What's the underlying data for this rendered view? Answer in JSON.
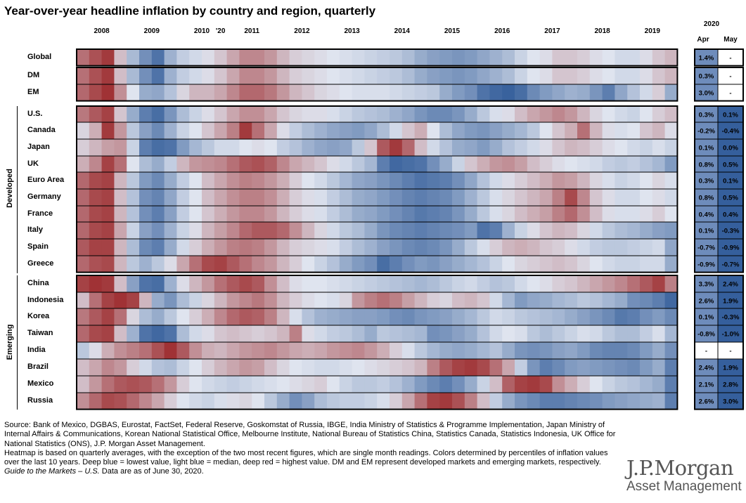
{
  "title": "Year-over-year headline inflation by country and region, quarterly",
  "header": {
    "years": [
      "2008",
      "2009",
      "2010",
      "2011",
      "2012",
      "2013",
      "2014",
      "2015",
      "2016",
      "2017",
      "2018",
      "2019",
      "'20"
    ],
    "recent_year": "2020",
    "recent_months": [
      "Apr",
      "May"
    ]
  },
  "groups": {
    "developed": "Developed",
    "emerging": "Emerging"
  },
  "colors": {
    "deep_blue": "#2b5796",
    "light_blue": "#dfe4ef",
    "deep_red": "#9a2325"
  },
  "chart_data": {
    "type": "heatmap",
    "title": "Year-over-year headline inflation by country and region, quarterly",
    "x_label_years": [
      "2008",
      "2009",
      "2010",
      "2011",
      "2012",
      "2013",
      "2014",
      "2015",
      "2016",
      "2017",
      "2018",
      "2019",
      "'20"
    ],
    "quarters_per_year": 4,
    "scale": "percentile rank of inflation over the last 10 years (0 = lowest / deep blue, 50 = median / light blue, 100 = highest / deep red)",
    "rows": [
      {
        "name": "Global",
        "values": [
          80,
          88,
          94,
          60,
          35,
          20,
          10,
          32,
          42,
          46,
          52,
          58,
          66,
          74,
          74,
          70,
          62,
          56,
          54,
          52,
          50,
          48,
          46,
          44,
          42,
          40,
          36,
          30,
          26,
          24,
          22,
          24,
          28,
          32,
          36,
          44,
          50,
          52,
          58,
          58,
          56,
          52,
          50,
          46,
          46,
          52,
          58,
          62
        ],
        "apr": "1.4%",
        "may": "-"
      },
      {
        "name": "DM",
        "values": [
          80,
          88,
          94,
          60,
          35,
          20,
          10,
          32,
          42,
          46,
          52,
          58,
          66,
          74,
          74,
          70,
          62,
          56,
          54,
          52,
          50,
          48,
          46,
          44,
          42,
          40,
          36,
          30,
          26,
          24,
          22,
          24,
          28,
          32,
          36,
          44,
          50,
          52,
          58,
          58,
          56,
          52,
          50,
          46,
          46,
          52,
          58,
          62
        ],
        "apr": "0.3%",
        "may": "-"
      },
      {
        "name": "EM",
        "values": [
          82,
          90,
          96,
          72,
          50,
          30,
          28,
          38,
          54,
          62,
          62,
          66,
          74,
          82,
          82,
          78,
          70,
          62,
          58,
          54,
          52,
          50,
          48,
          48,
          48,
          46,
          44,
          42,
          40,
          30,
          24,
          20,
          10,
          6,
          4,
          8,
          18,
          24,
          28,
          32,
          30,
          22,
          14,
          28,
          38,
          46,
          56,
          30
        ],
        "apr": "3.0%",
        "may": "-"
      },
      {
        "name": "U.S.",
        "values": [
          78,
          86,
          92,
          58,
          30,
          14,
          8,
          22,
          36,
          44,
          52,
          58,
          66,
          72,
          72,
          66,
          58,
          54,
          52,
          52,
          48,
          44,
          40,
          38,
          36,
          32,
          28,
          22,
          18,
          18,
          22,
          30,
          40,
          48,
          52,
          60,
          66,
          70,
          74,
          70,
          62,
          54,
          50,
          46,
          44,
          50,
          56,
          60
        ],
        "apr": "0.3%",
        "may": "0.1%"
      },
      {
        "name": "Canada",
        "values": [
          54,
          64,
          94,
          70,
          40,
          26,
          18,
          32,
          44,
          50,
          58,
          66,
          76,
          94,
          80,
          66,
          52,
          42,
          36,
          32,
          28,
          26,
          24,
          28,
          36,
          46,
          58,
          64,
          50,
          36,
          28,
          24,
          22,
          26,
          30,
          34,
          40,
          50,
          58,
          64,
          80,
          62,
          52,
          48,
          50,
          58,
          62,
          52
        ],
        "apr": "-0.2%",
        "may": "-0.4%"
      },
      {
        "name": "Japan",
        "values": [
          56,
          62,
          68,
          70,
          44,
          14,
          8,
          10,
          24,
          34,
          40,
          46,
          46,
          50,
          52,
          50,
          42,
          38,
          32,
          28,
          26,
          28,
          40,
          58,
          86,
          94,
          82,
          60,
          46,
          38,
          30,
          28,
          24,
          30,
          38,
          42,
          46,
          52,
          58,
          62,
          60,
          56,
          52,
          50,
          46,
          44,
          48,
          44
        ],
        "apr": "0.1%",
        "may": "0.0%"
      },
      {
        "name": "UK",
        "values": [
          64,
          74,
          92,
          80,
          50,
          36,
          30,
          42,
          62,
          70,
          72,
          74,
          80,
          86,
          88,
          84,
          74,
          66,
          62,
          58,
          52,
          46,
          40,
          34,
          14,
          6,
          8,
          10,
          20,
          30,
          44,
          58,
          64,
          70,
          72,
          68,
          60,
          56,
          52,
          50,
          48,
          46,
          42,
          40,
          42,
          38,
          34,
          24
        ],
        "apr": "0.8%",
        "may": "0.5%"
      },
      {
        "name": "Euro Area",
        "values": [
          82,
          90,
          92,
          62,
          40,
          24,
          18,
          30,
          42,
          50,
          60,
          66,
          72,
          76,
          74,
          70,
          64,
          56,
          50,
          46,
          40,
          34,
          28,
          26,
          22,
          18,
          14,
          10,
          12,
          14,
          20,
          28,
          38,
          46,
          52,
          56,
          60,
          64,
          70,
          68,
          62,
          54,
          48,
          44,
          46,
          50,
          54,
          48
        ],
        "apr": "0.3%",
        "may": "0.1%"
      },
      {
        "name": "Germany",
        "values": [
          82,
          90,
          92,
          60,
          38,
          20,
          16,
          28,
          42,
          50,
          60,
          66,
          72,
          76,
          76,
          72,
          64,
          56,
          52,
          48,
          42,
          36,
          30,
          28,
          24,
          20,
          16,
          14,
          16,
          18,
          24,
          32,
          40,
          48,
          54,
          58,
          62,
          66,
          76,
          90,
          74,
          58,
          52,
          46,
          46,
          50,
          52,
          46
        ],
        "apr": "0.8%",
        "may": "0.5%"
      },
      {
        "name": "France",
        "values": [
          82,
          90,
          92,
          62,
          38,
          20,
          14,
          26,
          42,
          50,
          58,
          64,
          70,
          74,
          74,
          70,
          62,
          56,
          52,
          48,
          42,
          36,
          30,
          28,
          24,
          20,
          16,
          12,
          14,
          16,
          22,
          30,
          40,
          48,
          54,
          60,
          64,
          68,
          76,
          82,
          72,
          60,
          52,
          48,
          48,
          52,
          56,
          50
        ],
        "apr": "0.4%",
        "may": "0.4%"
      },
      {
        "name": "Italy",
        "values": [
          82,
          90,
          92,
          66,
          44,
          26,
          20,
          32,
          44,
          52,
          62,
          68,
          74,
          82,
          86,
          86,
          82,
          72,
          62,
          54,
          46,
          40,
          36,
          30,
          22,
          18,
          16,
          14,
          16,
          18,
          20,
          24,
          10,
          14,
          32,
          44,
          52,
          58,
          62,
          60,
          54,
          46,
          40,
          36,
          34,
          30,
          26,
          24
        ],
        "apr": "0.1%",
        "may": "-0.3%"
      },
      {
        "name": "Spain",
        "values": [
          86,
          92,
          92,
          62,
          36,
          18,
          14,
          30,
          46,
          56,
          64,
          70,
          76,
          78,
          76,
          70,
          62,
          56,
          54,
          52,
          48,
          42,
          36,
          32,
          26,
          22,
          18,
          16,
          18,
          22,
          30,
          40,
          48,
          56,
          62,
          64,
          62,
          58,
          56,
          52,
          46,
          42,
          40,
          40,
          42,
          44,
          46,
          28
        ],
        "apr": "-0.7%",
        "may": "-0.9%"
      },
      {
        "name": "Greece",
        "values": [
          82,
          88,
          90,
          62,
          40,
          32,
          40,
          52,
          66,
          80,
          90,
          92,
          86,
          80,
          74,
          70,
          62,
          56,
          50,
          44,
          38,
          30,
          24,
          20,
          8,
          14,
          20,
          24,
          22,
          26,
          30,
          34,
          38,
          44,
          50,
          54,
          56,
          58,
          60,
          58,
          54,
          50,
          46,
          44,
          44,
          46,
          46,
          30
        ],
        "apr": "-0.9%",
        "may": "-0.7%"
      },
      {
        "name": "China",
        "values": [
          92,
          96,
          94,
          60,
          26,
          10,
          8,
          32,
          52,
          62,
          70,
          80,
          86,
          90,
          86,
          72,
          60,
          52,
          50,
          50,
          48,
          46,
          44,
          42,
          40,
          38,
          36,
          34,
          36,
          40,
          44,
          46,
          42,
          38,
          40,
          46,
          50,
          52,
          56,
          58,
          62,
          66,
          70,
          74,
          80,
          86,
          92,
          76
        ],
        "apr": "3.3%",
        "may": "2.4%"
      },
      {
        "name": "Indonesia",
        "values": [
          60,
          80,
          92,
          96,
          92,
          62,
          30,
          22,
          36,
          44,
          54,
          62,
          70,
          74,
          78,
          72,
          62,
          56,
          52,
          50,
          48,
          54,
          70,
          76,
          80,
          76,
          68,
          62,
          56,
          54,
          60,
          62,
          58,
          46,
          34,
          24,
          28,
          30,
          34,
          36,
          40,
          38,
          34,
          30,
          20,
          18,
          14,
          6
        ],
        "apr": "2.6%",
        "may": "1.9%"
      },
      {
        "name": "Korea",
        "values": [
          78,
          86,
          92,
          80,
          54,
          36,
          30,
          40,
          50,
          56,
          64,
          74,
          82,
          86,
          84,
          76,
          62,
          48,
          38,
          32,
          30,
          28,
          26,
          26,
          24,
          20,
          18,
          22,
          24,
          26,
          30,
          34,
          40,
          46,
          44,
          40,
          38,
          36,
          34,
          30,
          26,
          22,
          18,
          12,
          14,
          20,
          24,
          18
        ],
        "apr": "0.1%",
        "may": "-0.3%"
      },
      {
        "name": "Taiwan",
        "values": [
          82,
          90,
          92,
          60,
          32,
          10,
          6,
          10,
          36,
          46,
          52,
          58,
          60,
          58,
          56,
          58,
          62,
          76,
          52,
          46,
          42,
          40,
          36,
          30,
          40,
          38,
          36,
          34,
          20,
          22,
          26,
          30,
          38,
          46,
          50,
          48,
          40,
          36,
          40,
          44,
          48,
          46,
          40,
          36,
          36,
          42,
          48,
          34
        ],
        "apr": "-0.8%",
        "may": "-1.0%"
      },
      {
        "name": "India",
        "values": [
          40,
          52,
          64,
          72,
          76,
          80,
          88,
          96,
          86,
          72,
          64,
          62,
          66,
          70,
          72,
          74,
          70,
          66,
          64,
          66,
          70,
          72,
          74,
          70,
          64,
          56,
          48,
          40,
          34,
          30,
          28,
          30,
          34,
          38,
          30,
          22,
          20,
          22,
          26,
          28,
          24,
          18,
          16,
          16,
          18,
          24,
          30,
          20
        ],
        "apr": "-",
        "may": "-"
      },
      {
        "name": "Brazil",
        "values": [
          60,
          66,
          74,
          70,
          56,
          46,
          38,
          36,
          44,
          50,
          56,
          62,
          66,
          70,
          68,
          60,
          54,
          50,
          48,
          46,
          46,
          48,
          50,
          52,
          54,
          56,
          58,
          62,
          76,
          86,
          92,
          94,
          90,
          80,
          66,
          42,
          22,
          14,
          18,
          24,
          26,
          24,
          22,
          20,
          18,
          24,
          30,
          14
        ],
        "apr": "2.4%",
        "may": "1.9%"
      },
      {
        "name": "Mexico",
        "values": [
          60,
          70,
          80,
          86,
          88,
          86,
          80,
          70,
          56,
          50,
          46,
          44,
          42,
          44,
          46,
          48,
          50,
          52,
          54,
          56,
          50,
          44,
          40,
          40,
          42,
          38,
          32,
          24,
          18,
          14,
          20,
          30,
          44,
          60,
          84,
          92,
          94,
          90,
          72,
          64,
          56,
          50,
          44,
          40,
          38,
          34,
          30,
          14
        ],
        "apr": "2.1%",
        "may": "2.8%"
      },
      {
        "name": "Russia",
        "values": [
          72,
          82,
          90,
          88,
          82,
          74,
          66,
          56,
          50,
          46,
          44,
          48,
          52,
          54,
          50,
          40,
          30,
          20,
          26,
          36,
          40,
          42,
          42,
          44,
          48,
          56,
          66,
          80,
          92,
          94,
          88,
          76,
          60,
          42,
          30,
          22,
          18,
          14,
          14,
          16,
          18,
          20,
          24,
          26,
          28,
          30,
          32,
          14
        ],
        "apr": "2.6%",
        "may": "3.0%"
      }
    ]
  },
  "footnotes": {
    "source": "Source: Bank of Mexico, DGBAS, Eurostat, FactSet, Federal Reserve, Goskomstat of Russia, IBGE, India Ministry of Statistics & Programme Implementation, Japan Ministry of Internal Affairs & Communications, Korean National Statistical Office, Melbourne Institute, National Bureau of Statistics China, Statistics Canada, Statistics Indonesia, UK Office for National Statistics (ONS), J.P. Morgan Asset Management.",
    "method": "Heatmap is based on quarterly averages, with the exception of the two most recent figures, which are single month readings. Colors determined by percentiles of inflation values over the last 10 years. Deep blue = lowest value, light blue = median, deep red = highest value. DM and EM represent developed markets and emerging markets, respectively.",
    "guide_title": "Guide to the Markets – U.S.",
    "guide_date": " Data are as of June 30, 2020."
  },
  "brand": {
    "name": "J.P.Morgan",
    "sub": "Asset Management"
  }
}
